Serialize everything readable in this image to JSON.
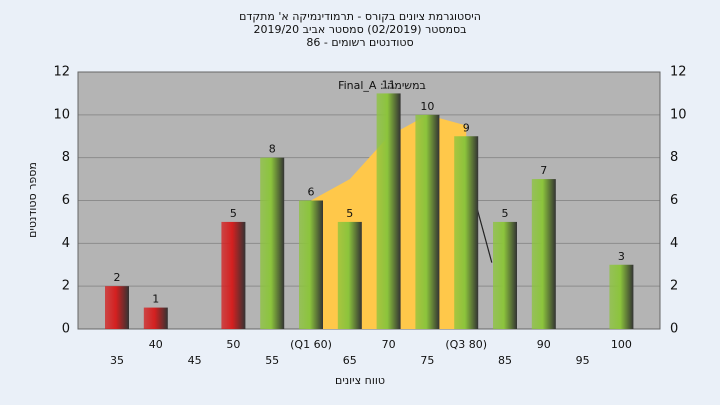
{
  "chart_data": {
    "type": "bar",
    "title": [
      "היסטוגרמת ציונים בקורס - תרמודינמיקה א' מתקדם",
      "בסמסטר  (02/2019)  סמסטר אביב 2019/20",
      "סטודנטים רשומים - 86"
    ],
    "annotation": "במשימה : Final_A",
    "x_label": "טווח ציונים",
    "y_label": "מספר סטודנטים",
    "categories": [
      "35",
      "40",
      "45",
      "50",
      "55",
      "(Q1 60)",
      "65",
      "70",
      "75",
      "(Q3 80)",
      "85",
      "90",
      "95",
      "100"
    ],
    "category_x": [
      35,
      40,
      45,
      50,
      55,
      60,
      65,
      70,
      75,
      80,
      85,
      90,
      95,
      100
    ],
    "values": [
      2,
      1,
      null,
      5,
      8,
      6,
      5,
      11,
      10,
      9,
      5,
      7,
      null,
      3
    ],
    "colors": [
      "#d42020",
      "#d42020",
      "#d42020",
      "#d42020",
      "#8cc43c",
      "#8cc43c",
      "#8cc43c",
      "#8cc43c",
      "#8cc43c",
      "#8cc43c",
      "#8cc43c",
      "#8cc43c",
      "#8cc43c",
      "#8cc43c"
    ],
    "area": {
      "color": "#ffc84a",
      "x": [
        60,
        60,
        65,
        70,
        75,
        80,
        80
      ],
      "values": [
        0,
        6,
        7,
        9,
        10,
        9.5,
        0
      ]
    },
    "line": {
      "color": "#222222",
      "x": [
        80,
        83.3
      ],
      "values": [
        7.5,
        3.1
      ]
    },
    "ylim": [
      0,
      12
    ],
    "yticks": [
      0,
      2,
      4,
      6,
      8,
      10,
      12
    ],
    "grid": true
  }
}
